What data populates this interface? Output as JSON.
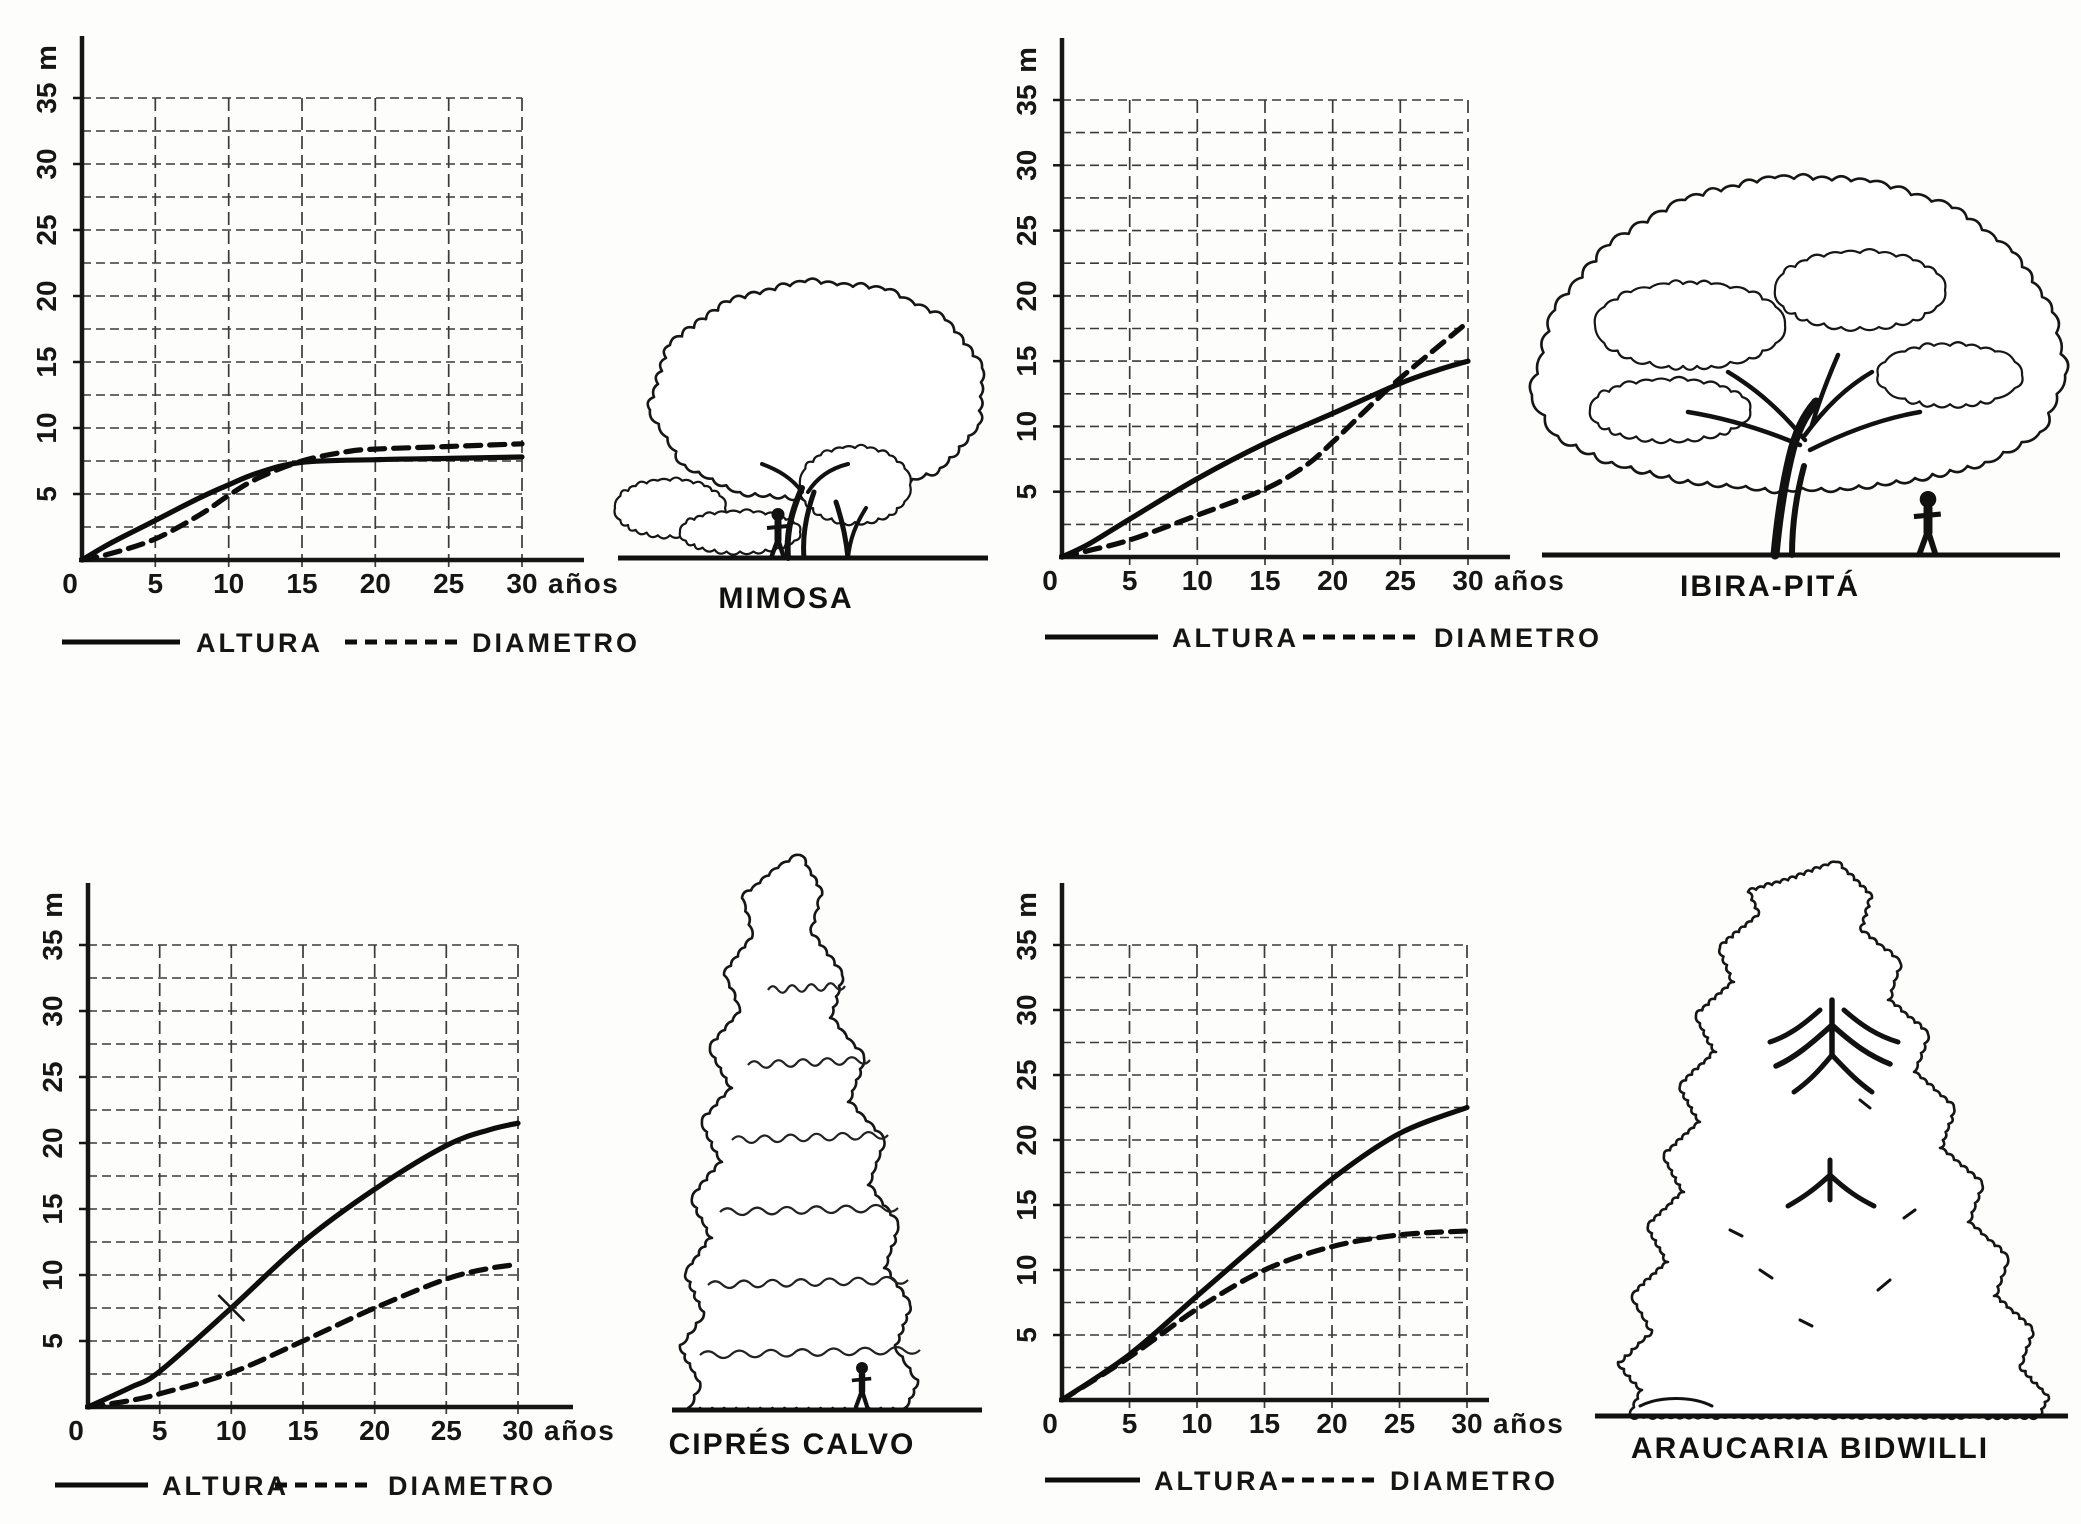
{
  "figure": {
    "background": "#fdfdfc",
    "ink": "#161616",
    "curve_color": "#0d0d0d",
    "grid_color": "#3a3a3a",
    "y_axis_unit": "m",
    "x_axis_unit": "años",
    "legend_labels": {
      "altura": "ALTURA",
      "diametro": "DIAMETRO"
    }
  },
  "panels": [
    {
      "tree_label": "MIMOSA"
    },
    {
      "tree_label": "IBIRA-PITÁ"
    },
    {
      "tree_label": "CIPRÉS CALVO"
    },
    {
      "tree_label": "ARAUCARIA BIDWILLI"
    }
  ],
  "chart_data": [
    {
      "type": "line",
      "species": "MIMOSA",
      "xlabel": "años",
      "ylabel": "m",
      "xlim": [
        0,
        30
      ],
      "ylim": [
        0,
        37.5
      ],
      "x_ticks": [
        0,
        5,
        10,
        15,
        20,
        25,
        30
      ],
      "y_ticks": [
        5,
        10,
        15,
        20,
        25,
        30,
        35
      ],
      "grid": {
        "x_step": 5,
        "y_step": 2.5,
        "visible": true
      },
      "legend_position": "bottom",
      "series": [
        {
          "name": "ALTURA",
          "line": "solid",
          "x": [
            0,
            2,
            5,
            8,
            10,
            12,
            15,
            20,
            25,
            30
          ],
          "y": [
            0,
            1.3,
            3,
            4.7,
            5.7,
            6.6,
            7.4,
            7.6,
            7.7,
            7.8
          ]
        },
        {
          "name": "DIAMETRO",
          "line": "dashed",
          "x": [
            0,
            2,
            5,
            8,
            10,
            12,
            15,
            18,
            20,
            25,
            30
          ],
          "y": [
            0,
            0.5,
            1.6,
            3.4,
            4.9,
            6.2,
            7.5,
            8.2,
            8.4,
            8.6,
            8.8
          ]
        }
      ],
      "annotations": []
    },
    {
      "type": "line",
      "species": "IBIRA-PITÁ",
      "xlabel": "años",
      "ylabel": "m",
      "xlim": [
        0,
        30
      ],
      "ylim": [
        0,
        37.5
      ],
      "x_ticks": [
        0,
        5,
        10,
        15,
        20,
        25,
        30
      ],
      "y_ticks": [
        5,
        10,
        15,
        20,
        25,
        30,
        35
      ],
      "grid": {
        "x_step": 5,
        "y_step": 2.5,
        "visible": true
      },
      "legend_position": "bottom",
      "series": [
        {
          "name": "ALTURA",
          "line": "solid",
          "x": [
            0,
            2,
            5,
            10,
            15,
            20,
            25,
            28,
            30
          ],
          "y": [
            0,
            1,
            2.9,
            6,
            8.7,
            11,
            13.3,
            14.4,
            15
          ]
        },
        {
          "name": "DIAMETRO",
          "line": "dashed",
          "x": [
            0,
            2,
            5,
            10,
            15,
            18,
            20,
            23,
            25,
            30
          ],
          "y": [
            0,
            0.5,
            1.3,
            3.2,
            5.2,
            7,
            8.8,
            11.8,
            13.7,
            18
          ]
        }
      ],
      "annotations": []
    },
    {
      "type": "line",
      "species": "CIPRÉS CALVO",
      "xlabel": "años",
      "ylabel": "m",
      "xlim": [
        0,
        30
      ],
      "ylim": [
        0,
        37.5
      ],
      "x_ticks": [
        0,
        5,
        10,
        15,
        20,
        25,
        30
      ],
      "y_ticks": [
        5,
        10,
        15,
        20,
        25,
        30,
        35
      ],
      "grid": {
        "x_step": 5,
        "y_step": 2.5,
        "visible": true
      },
      "legend_position": "bottom",
      "series": [
        {
          "name": "ALTURA",
          "line": "solid",
          "x": [
            0,
            3,
            5,
            10,
            15,
            20,
            25,
            28,
            30
          ],
          "y": [
            0,
            1.5,
            2.7,
            7.5,
            12.5,
            16.5,
            19.8,
            21,
            21.5
          ]
        },
        {
          "name": "DIAMETRO",
          "line": "dashed",
          "x": [
            0,
            3,
            5,
            10,
            15,
            20,
            25,
            28,
            30
          ],
          "y": [
            0,
            0.5,
            1,
            2.6,
            5,
            7.5,
            9.7,
            10.5,
            10.8
          ]
        }
      ],
      "annotations": [
        {
          "type": "x-mark",
          "x": 10,
          "y": 7.5
        }
      ]
    },
    {
      "type": "line",
      "species": "ARAUCARIA BIDWILLI",
      "xlabel": "años",
      "ylabel": "m",
      "xlim": [
        0,
        30
      ],
      "ylim": [
        0,
        37.5
      ],
      "x_ticks": [
        0,
        5,
        10,
        15,
        20,
        25,
        30
      ],
      "y_ticks": [
        5,
        10,
        15,
        20,
        25,
        30,
        35
      ],
      "grid": {
        "x_step": 5,
        "y_step": 2.5,
        "visible": true
      },
      "legend_position": "bottom",
      "series": [
        {
          "name": "ALTURA",
          "line": "solid",
          "x": [
            0,
            5,
            10,
            15,
            20,
            25,
            30
          ],
          "y": [
            0,
            3.5,
            8,
            12.5,
            17,
            20.5,
            22.5
          ]
        },
        {
          "name": "DIAMETRO",
          "line": "dashed",
          "x": [
            0,
            5,
            10,
            15,
            20,
            25,
            30
          ],
          "y": [
            0,
            3.3,
            7,
            10,
            11.8,
            12.7,
            13
          ]
        }
      ],
      "annotations": []
    }
  ]
}
